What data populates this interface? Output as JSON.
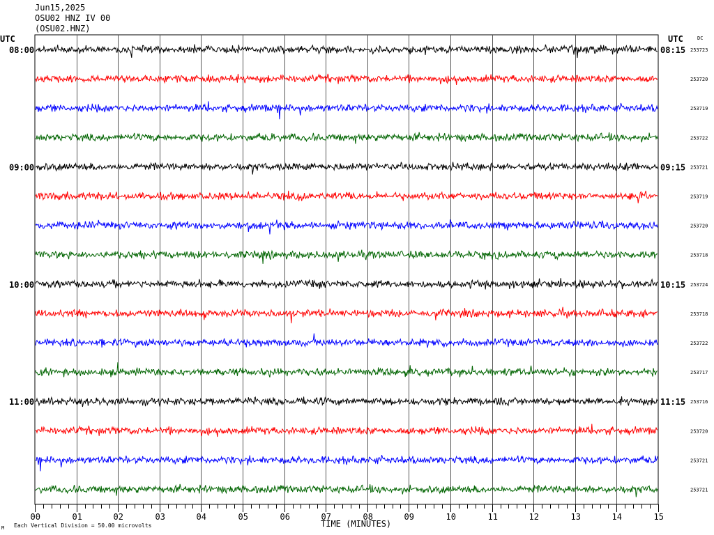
{
  "header": {
    "date": "Jun15,2025",
    "station_line": "OSU02 HNZ IV 00",
    "station_code": "(OSU02.HNZ)"
  },
  "labels": {
    "left_utc": "UTC",
    "right_utc": "UTC",
    "dc": "DC",
    "xlabel": "TIME (MINUTES)",
    "scale_note": "Each Vertical Division =   50.00 microvolts",
    "corner_mark": "M"
  },
  "colors": {
    "black": "#000000",
    "red": "#ff0000",
    "blue": "#0000ff",
    "green": "#006400",
    "grid": "#000000"
  },
  "chart_data": {
    "type": "line",
    "title": "OSU02 HNZ IV 00",
    "xlabel": "TIME (MINUTES)",
    "xlim": [
      0,
      15
    ],
    "x_ticks": [
      "00",
      "01",
      "02",
      "03",
      "04",
      "05",
      "06",
      "07",
      "08",
      "09",
      "10",
      "11",
      "12",
      "13",
      "14",
      "15"
    ],
    "traces": [
      {
        "left_label": "08:00",
        "right_label": "08:15",
        "dc": "253723",
        "color": "black"
      },
      {
        "left_label": "",
        "right_label": "",
        "dc": "253720",
        "color": "red"
      },
      {
        "left_label": "",
        "right_label": "",
        "dc": "253719",
        "color": "blue"
      },
      {
        "left_label": "",
        "right_label": "",
        "dc": "253722",
        "color": "green"
      },
      {
        "left_label": "09:00",
        "right_label": "09:15",
        "dc": "253721",
        "color": "black"
      },
      {
        "left_label": "",
        "right_label": "",
        "dc": "253719",
        "color": "red"
      },
      {
        "left_label": "",
        "right_label": "",
        "dc": "253720",
        "color": "blue"
      },
      {
        "left_label": "",
        "right_label": "",
        "dc": "253718",
        "color": "green"
      },
      {
        "left_label": "10:00",
        "right_label": "10:15",
        "dc": "253724",
        "color": "black"
      },
      {
        "left_label": "",
        "right_label": "",
        "dc": "253718",
        "color": "red"
      },
      {
        "left_label": "",
        "right_label": "",
        "dc": "253722",
        "color": "blue"
      },
      {
        "left_label": "",
        "right_label": "",
        "dc": "253717",
        "color": "green"
      },
      {
        "left_label": "11:00",
        "right_label": "11:15",
        "dc": "253716",
        "color": "black"
      },
      {
        "left_label": "",
        "right_label": "",
        "dc": "253720",
        "color": "red"
      },
      {
        "left_label": "",
        "right_label": "",
        "dc": "253721",
        "color": "blue"
      },
      {
        "left_label": "",
        "right_label": "",
        "dc": "253721",
        "color": "green"
      }
    ]
  }
}
